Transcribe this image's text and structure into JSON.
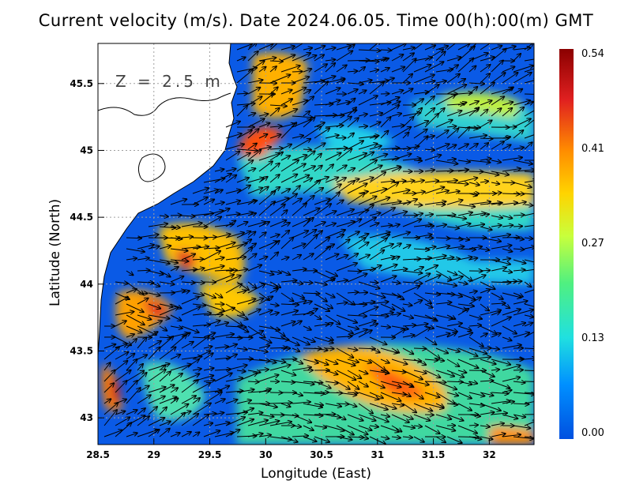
{
  "title": "Current velocity (m/s). Date 2024.06.05. Time 00(h):00(m) GMT",
  "depth_label": "Z = 2.5 m",
  "x_axis": {
    "title": "Longitude (East)",
    "range": [
      28.5,
      32.4
    ],
    "ticks": [
      "28.5",
      "29",
      "29.5",
      "30",
      "30.5",
      "31",
      "31.5",
      "32"
    ]
  },
  "y_axis": {
    "title": "Latitude (North)",
    "range": [
      42.8,
      45.8
    ],
    "ticks": [
      "43",
      "43.5",
      "44",
      "44.5",
      "45",
      "45.5"
    ]
  },
  "colorbar": {
    "labels": [
      "0.54",
      "0.41",
      "0.27",
      "0.13",
      "0.00"
    ],
    "colors": [
      "#8b0000",
      "#e02020",
      "#ff8c00",
      "#ffd400",
      "#c8ff3c",
      "#50f080",
      "#20e0e0",
      "#0090ff",
      "#0050e0"
    ]
  },
  "colors": {
    "land": "#ffffff",
    "coastline": "#000000",
    "grid": "#a0a0a0",
    "arrow": "#000000"
  }
}
